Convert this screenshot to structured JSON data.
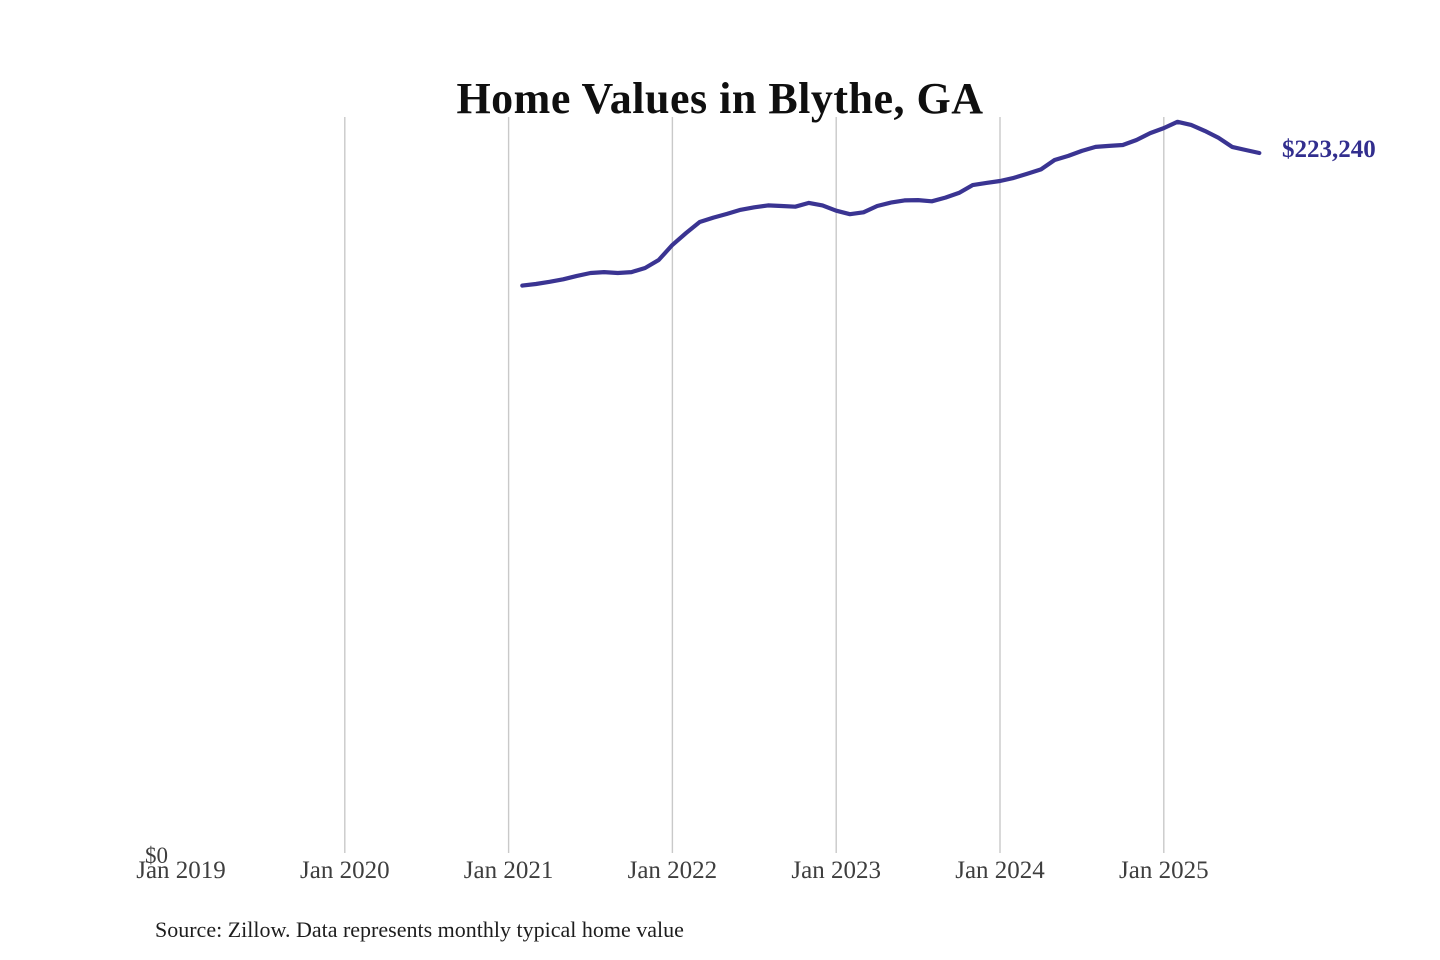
{
  "source_note": "Source: Zillow. Data represents monthly typical home value",
  "colors": {
    "line": "#3a3492",
    "latest_value_label": "#322e8e",
    "title_text": "#0f0f0f",
    "axis_text": "#3e3e3e",
    "gridline": "#c9c9c9",
    "background": "#ffffff"
  },
  "chart_data": {
    "type": "line",
    "title": "Home Values in Blythe, GA",
    "xlabel": "",
    "ylabel": "",
    "x_tick_labels": [
      "Jan 2019",
      "Jan 2020",
      "Jan 2021",
      "Jan 2022",
      "Jan 2023",
      "Jan 2024",
      "Jan 2025"
    ],
    "y_tick_labels": [
      "$0"
    ],
    "ylim": [
      0,
      240000
    ],
    "grid": "vertical gridlines at each January, none at Jan 2019",
    "legend": "none",
    "last_point_label": "$223,240",
    "last_point_value": 223240,
    "series": [
      {
        "name": "Typical home value (USD)",
        "color": "#3a3492",
        "months": [
          "2021-02",
          "2021-03",
          "2021-04",
          "2021-05",
          "2021-06",
          "2021-07",
          "2021-08",
          "2021-09",
          "2021-10",
          "2021-11",
          "2021-12",
          "2022-01",
          "2022-02",
          "2022-03",
          "2022-04",
          "2022-05",
          "2022-06",
          "2022-07",
          "2022-08",
          "2022-09",
          "2022-10",
          "2022-11",
          "2022-12",
          "2023-01",
          "2023-02",
          "2023-03",
          "2023-04",
          "2023-05",
          "2023-06",
          "2023-07",
          "2023-08",
          "2023-09",
          "2023-10",
          "2023-11",
          "2023-12",
          "2024-01",
          "2024-02",
          "2024-03",
          "2024-04",
          "2024-05",
          "2024-06",
          "2024-07",
          "2024-08",
          "2024-09",
          "2024-10",
          "2024-11",
          "2024-12",
          "2025-01",
          "2025-02",
          "2025-03",
          "2025-04",
          "2025-05",
          "2025-06",
          "2025-07",
          "2025-08"
        ],
        "values": [
          180900,
          181400,
          182100,
          182900,
          184000,
          184900,
          185200,
          184900,
          185200,
          186500,
          189100,
          193900,
          197700,
          201200,
          202600,
          203800,
          205100,
          205900,
          206500,
          206300,
          206100,
          207300,
          206500,
          204800,
          203700,
          204300,
          206300,
          207400,
          208100,
          208200,
          207800,
          209000,
          210500,
          213000,
          213700,
          214300,
          215300,
          216600,
          218000,
          221000,
          222300,
          223900,
          225200,
          225500,
          225800,
          227400,
          229600,
          231200,
          233200,
          232200,
          230300,
          228100,
          225200,
          224200,
          223240
        ]
      }
    ]
  }
}
